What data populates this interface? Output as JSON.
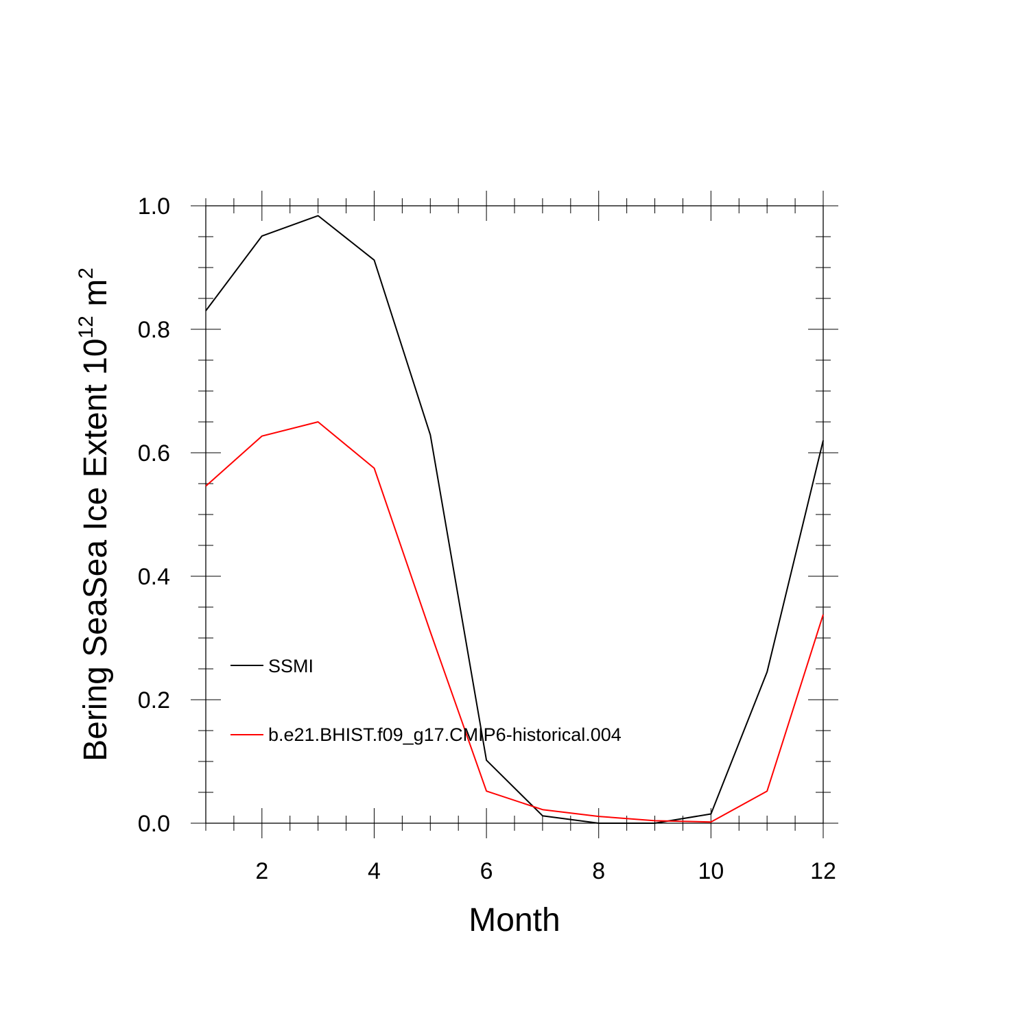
{
  "chart_data": {
    "type": "line",
    "title": "",
    "xlabel": "Month",
    "ylabel": {
      "main": "Bering SeaSea Ice Extent 10",
      "exponent": "12",
      "unit": " m",
      "unit_exponent": "2"
    },
    "xlim": [
      1,
      12
    ],
    "ylim": [
      0.0,
      1.0
    ],
    "x_ticks": [
      2,
      4,
      6,
      8,
      10,
      12
    ],
    "x_tick_labels": [
      "2",
      "4",
      "6",
      "8",
      "10",
      "12"
    ],
    "y_ticks": [
      0.0,
      0.2,
      0.4,
      0.6,
      0.8,
      1.0
    ],
    "y_tick_labels": [
      "0.0",
      "0.2",
      "0.4",
      "0.6",
      "0.8",
      "1.0"
    ],
    "grid": false,
    "legend_position": "lower-left inside",
    "x": [
      1,
      2,
      3,
      4,
      5,
      6,
      7,
      8,
      9,
      10,
      11,
      12
    ],
    "series": [
      {
        "name": "SSMI",
        "color": "#000000",
        "values": [
          0.83,
          0.951,
          0.984,
          0.912,
          0.629,
          0.102,
          0.012,
          0.0,
          0.0,
          0.015,
          0.245,
          0.62
        ]
      },
      {
        "name": "b.e21.BHIST.f09_g17.CMIP6-historical.004",
        "color": "#ff0000",
        "values": [
          0.546,
          0.627,
          0.65,
          0.575,
          0.31,
          0.052,
          0.022,
          0.011,
          0.004,
          0.002,
          0.052,
          0.338
        ]
      }
    ]
  }
}
